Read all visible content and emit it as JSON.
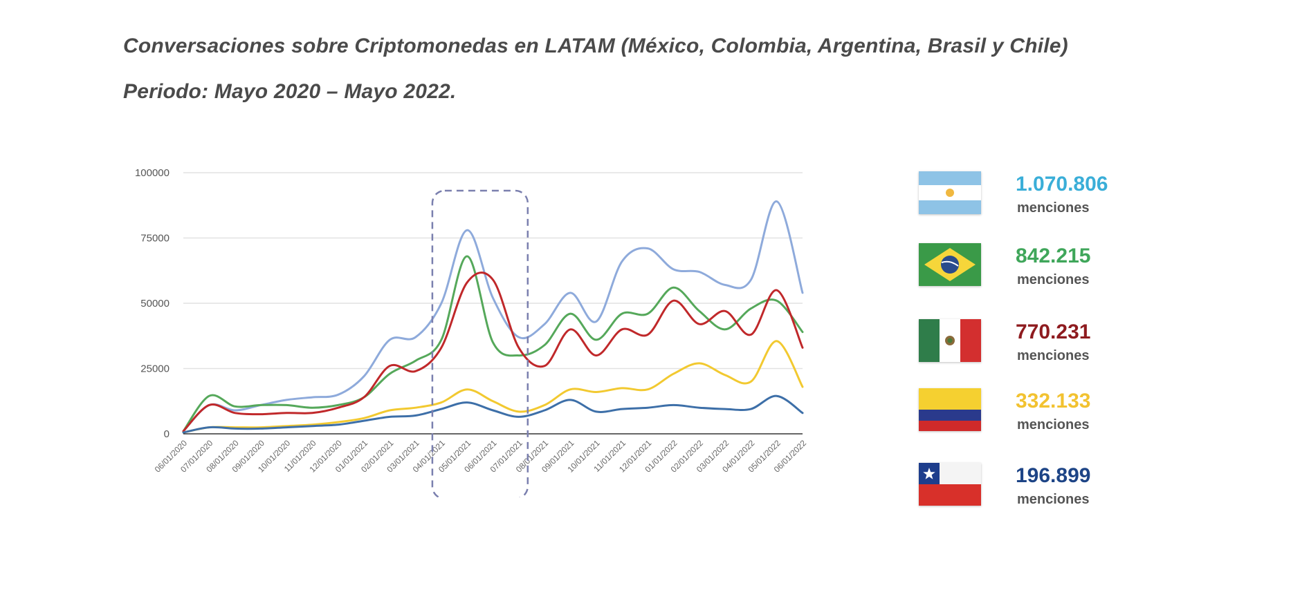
{
  "header": {
    "title": "Conversaciones sobre Criptomonedas en LATAM (México, Colombia, Argentina, Brasil y Chile)",
    "subtitle": "Periodo: Mayo 2020 – Mayo 2022."
  },
  "chart_data": {
    "type": "line",
    "title": "Conversaciones sobre Criptomonedas en LATAM (México, Colombia, Argentina, Brasil y Chile)",
    "subtitle": "Periodo: Mayo 2020 – Mayo 2022.",
    "xlabel": "",
    "ylabel": "",
    "ylim": [
      0,
      100000
    ],
    "yticks": [
      0,
      25000,
      50000,
      75000,
      100000
    ],
    "grid": true,
    "legend_position": "right",
    "highlight_range": [
      "04/01/2021",
      "07/01/2021"
    ],
    "categories": [
      "06/01/2020",
      "07/01/2020",
      "08/01/2020",
      "09/01/2020",
      "10/01/2020",
      "11/01/2020",
      "12/01/2020",
      "01/01/2021",
      "02/01/2021",
      "03/01/2021",
      "04/01/2021",
      "05/01/2021",
      "06/01/2021",
      "07/01/2021",
      "08/01/2021",
      "09/01/2021",
      "10/01/2021",
      "11/01/2021",
      "12/01/2021",
      "01/01/2022",
      "02/01/2022",
      "03/01/2022",
      "04/01/2022",
      "05/01/2022",
      "06/01/2022"
    ],
    "series": [
      {
        "name": "Argentina",
        "color": "#8eaadb",
        "values": [
          1000,
          11000,
          9000,
          11000,
          13000,
          14000,
          15000,
          22000,
          36000,
          37000,
          50000,
          78000,
          52000,
          37000,
          42000,
          54000,
          43000,
          66000,
          71000,
          63000,
          62000,
          57000,
          59000,
          89000,
          54000
        ]
      },
      {
        "name": "Brasil",
        "color": "#55a85a",
        "values": [
          1000,
          14500,
          10500,
          11000,
          11000,
          10000,
          11000,
          14000,
          23000,
          28000,
          36000,
          68000,
          35000,
          30000,
          34000,
          46000,
          36000,
          46000,
          46000,
          56000,
          47000,
          40000,
          48000,
          51000,
          39000
        ]
      },
      {
        "name": "México",
        "color": "#c0282a",
        "values": [
          1000,
          11000,
          8000,
          7500,
          8000,
          8000,
          10000,
          14000,
          26000,
          24000,
          33000,
          58000,
          59000,
          33000,
          26000,
          40000,
          30000,
          40000,
          38000,
          51000,
          42000,
          47000,
          38000,
          55000,
          33000
        ]
      },
      {
        "name": "Colombia",
        "color": "#f2c930",
        "values": [
          500,
          2500,
          2500,
          2500,
          3000,
          3500,
          4500,
          6000,
          9000,
          10000,
          12000,
          17000,
          12500,
          8500,
          11000,
          17000,
          16000,
          17500,
          17000,
          23000,
          27000,
          22500,
          20000,
          35500,
          18000
        ]
      },
      {
        "name": "Chile",
        "color": "#3d6fa8",
        "values": [
          500,
          2500,
          2000,
          2000,
          2500,
          3000,
          3500,
          5000,
          6500,
          7000,
          9500,
          12000,
          9000,
          6500,
          9000,
          13000,
          8500,
          9500,
          10000,
          11000,
          10000,
          9500,
          9500,
          14500,
          8000
        ]
      }
    ]
  },
  "legend": [
    {
      "country": "Argentina",
      "flag": "argentina-flag-icon",
      "value": "1.070.806",
      "unit": "menciones",
      "color": "#3aaed8"
    },
    {
      "country": "Brasil",
      "flag": "brazil-flag-icon",
      "value": "842.215",
      "unit": "menciones",
      "color": "#3fa65a"
    },
    {
      "country": "México",
      "flag": "mexico-flag-icon",
      "value": "770.231",
      "unit": "menciones",
      "color": "#8e1b1f"
    },
    {
      "country": "Colombia",
      "flag": "colombia-flag-icon",
      "value": "332.133",
      "unit": "menciones",
      "color": "#f2c230"
    },
    {
      "country": "Chile",
      "flag": "chile-flag-icon",
      "value": "196.899",
      "unit": "menciones",
      "color": "#1d4486"
    }
  ]
}
